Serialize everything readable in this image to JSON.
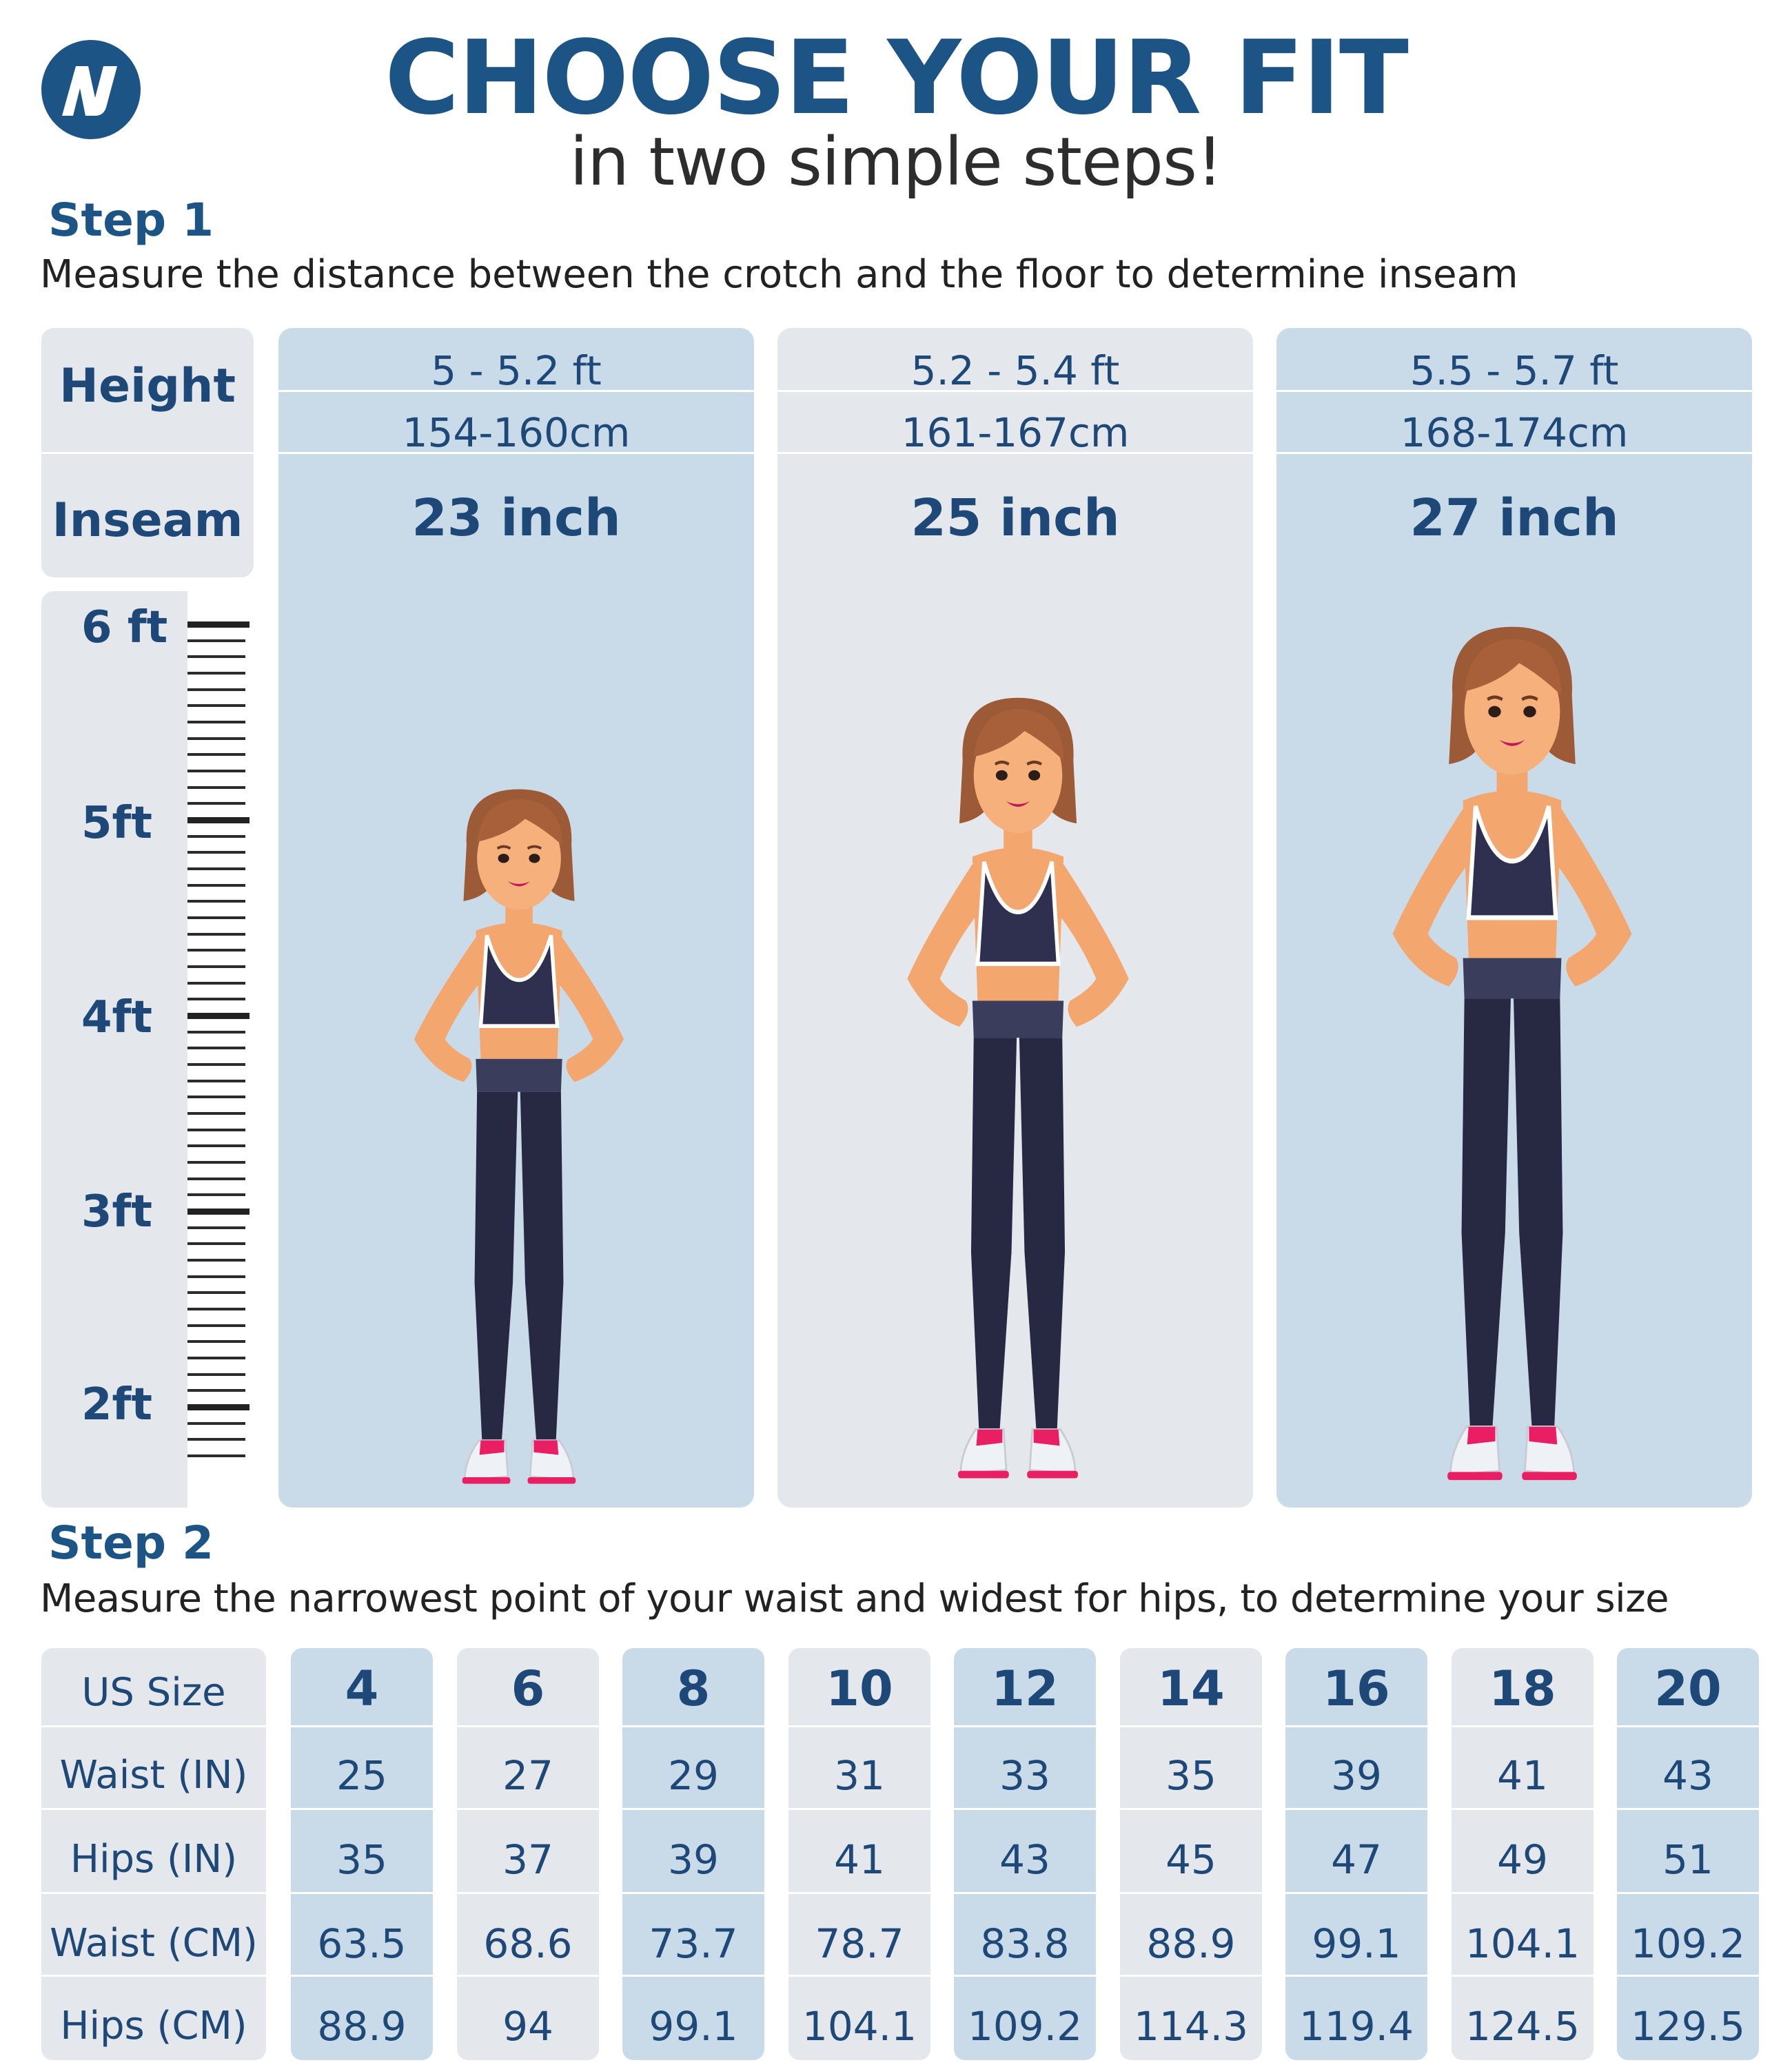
{
  "header": {
    "title": "CHOOSE YOUR FIT",
    "subtitle": "in two simple steps!",
    "logo_icon": "brand-n-logo-icon"
  },
  "colors": {
    "brand_blue": "#1d5486",
    "column_blue": "#c9dbe8",
    "column_grey": "#e4e8ec"
  },
  "step1": {
    "title": "Step 1",
    "description": "Measure the distance between the crotch and the floor to determine inseam",
    "row_labels": {
      "height": "Height",
      "inseam": "Inseam"
    },
    "ruler_labels": [
      "6 ft",
      "5ft",
      "4ft",
      "3ft",
      "2ft"
    ],
    "columns": [
      {
        "height_ft": "5 - 5.2 ft",
        "height_cm": "154-160cm",
        "inseam": "23 inch"
      },
      {
        "height_ft": "5.2 - 5.4 ft",
        "height_cm": "161-167cm",
        "inseam": "25 inch"
      },
      {
        "height_ft": "5.5 - 5.7  ft",
        "height_cm": "168-174cm",
        "inseam": "27 inch"
      }
    ]
  },
  "step2": {
    "title": "Step 2",
    "description": "Measure the narrowest point of your waist and widest for hips, to determine your size",
    "row_labels": [
      "US Size",
      "Waist (IN)",
      "Hips (IN)",
      "Waist (CM)",
      "Hips (CM)"
    ],
    "sizes": [
      {
        "size": "4",
        "waist_in": "25",
        "hips_in": "35",
        "waist_cm": "63.5",
        "hips_cm": "88.9"
      },
      {
        "size": "6",
        "waist_in": "27",
        "hips_in": "37",
        "waist_cm": "68.6",
        "hips_cm": "94"
      },
      {
        "size": "8",
        "waist_in": "29",
        "hips_in": "39",
        "waist_cm": "73.7",
        "hips_cm": "99.1"
      },
      {
        "size": "10",
        "waist_in": "31",
        "hips_in": "41",
        "waist_cm": "78.7",
        "hips_cm": "104.1"
      },
      {
        "size": "12",
        "waist_in": "33",
        "hips_in": "43",
        "waist_cm": "83.8",
        "hips_cm": "109.2"
      },
      {
        "size": "14",
        "waist_in": "35",
        "hips_in": "45",
        "waist_cm": "88.9",
        "hips_cm": "114.3"
      },
      {
        "size": "16",
        "waist_in": "39",
        "hips_in": "47",
        "waist_cm": "99.1",
        "hips_cm": "119.4"
      },
      {
        "size": "18",
        "waist_in": "41",
        "hips_in": "49",
        "waist_cm": "104.1",
        "hips_cm": "124.5"
      },
      {
        "size": "20",
        "waist_in": "43",
        "hips_in": "51",
        "waist_cm": "109.2",
        "hips_cm": "129.5"
      }
    ]
  }
}
